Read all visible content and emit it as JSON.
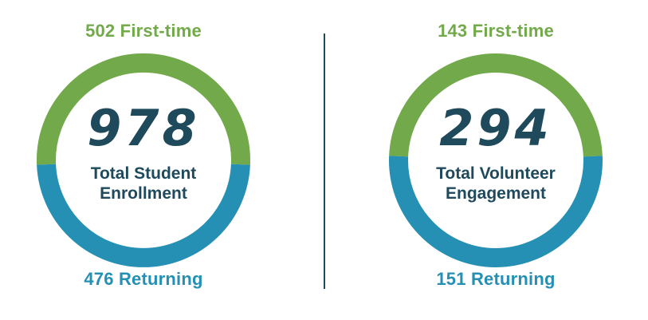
{
  "colors": {
    "first_time": "#72a94a",
    "returning": "#2590b3",
    "number": "#1f4a5c",
    "divider": "#1f4a5c"
  },
  "chart_data": [
    {
      "type": "pie",
      "center_value": "978",
      "center_label_line1": "Total Student",
      "center_label_line2": "Enrollment",
      "slices": [
        {
          "name": "First-time",
          "value": 502,
          "label": "502 First-time",
          "color": "#72a94a"
        },
        {
          "name": "Returning",
          "value": 476,
          "label": "476 Returning",
          "color": "#2590b3"
        }
      ]
    },
    {
      "type": "pie",
      "center_value": "294",
      "center_label_line1": "Total Volunteer",
      "center_label_line2": "Engagement",
      "slices": [
        {
          "name": "First-time",
          "value": 143,
          "label": "143 First-time",
          "color": "#72a94a"
        },
        {
          "name": "Returning",
          "value": 151,
          "label": "151 Returning",
          "color": "#2590b3"
        }
      ]
    }
  ]
}
